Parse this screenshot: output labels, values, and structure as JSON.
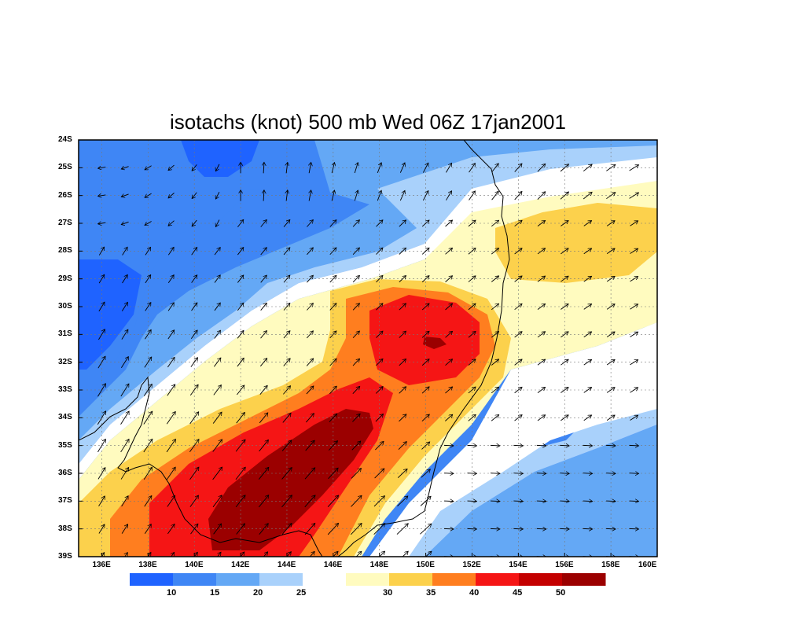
{
  "title": "isotachs (knot) 500 mb Wed 06Z 17jan2001",
  "map": {
    "lon_range": [
      135,
      160
    ],
    "lat_range": [
      -39,
      -24
    ],
    "lon_ticks": [
      "136E",
      "138E",
      "140E",
      "142E",
      "144E",
      "146E",
      "148E",
      "150E",
      "152E",
      "154E",
      "156E",
      "158E",
      "160E"
    ],
    "lat_ticks": [
      "24S",
      "25S",
      "26S",
      "27S",
      "28S",
      "29S",
      "30S",
      "31S",
      "32S",
      "33S",
      "34S",
      "35S",
      "36S",
      "37S",
      "38S",
      "39S"
    ],
    "variable": "wind speed (knot)",
    "level": "500 mb",
    "vectors": "wind direction arrows"
  },
  "colorbar": {
    "colors": [
      "#1f63ff",
      "#3f86f5",
      "#64a8f5",
      "#a9d1fb",
      "#ffffff",
      "#fffbbf",
      "#fcd14c",
      "#ff7e1f",
      "#f51515",
      "#c40000",
      "#9b0000"
    ],
    "labels": [
      "10",
      "15",
      "20",
      "25",
      "30",
      "35",
      "40",
      "45",
      "50"
    ]
  }
}
